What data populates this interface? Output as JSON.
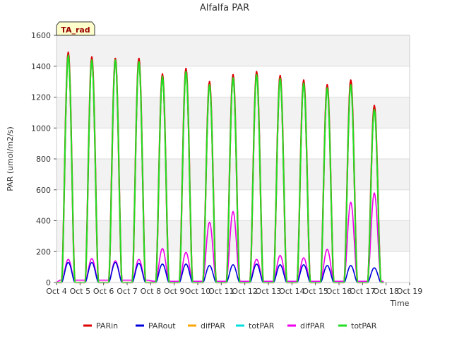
{
  "chart_data": {
    "type": "line",
    "title": "Alfalfa PAR",
    "xlabel": "Time",
    "ylabel": "PAR (umol/m2/s)",
    "xlim": [
      4,
      19
    ],
    "ylim": [
      0,
      1600
    ],
    "x_ticks": [
      {
        "value": 4,
        "label": "Oct 4"
      },
      {
        "value": 5,
        "label": "Oct 5"
      },
      {
        "value": 6,
        "label": "Oct 6"
      },
      {
        "value": 7,
        "label": "Oct 7"
      },
      {
        "value": 8,
        "label": "Oct 8"
      },
      {
        "value": 9,
        "label": "Oct 9"
      },
      {
        "value": 10,
        "label": "Oct 10"
      },
      {
        "value": 11,
        "label": "Oct 11"
      },
      {
        "value": 12,
        "label": "Oct 12"
      },
      {
        "value": 13,
        "label": "Oct 13"
      },
      {
        "value": 14,
        "label": "Oct 14"
      },
      {
        "value": 15,
        "label": "Oct 15"
      },
      {
        "value": 16,
        "label": "Oct 16"
      },
      {
        "value": 17,
        "label": "Oct 17"
      },
      {
        "value": 18,
        "label": "Oct 18"
      },
      {
        "value": 19,
        "label": "Oct 19"
      }
    ],
    "y_ticks": [
      0,
      200,
      400,
      600,
      800,
      1000,
      1200,
      1400,
      1600
    ],
    "grid": true,
    "legend_position": "bottom-center",
    "annotation": "TA_rad",
    "series": [
      {
        "name": "PARin",
        "color": "#dd0000"
      },
      {
        "name": "PARout",
        "color": "#0000dd"
      },
      {
        "name": "difPAR",
        "color": "#ffa500"
      },
      {
        "name": "totPAR",
        "color": "#00dddd"
      },
      {
        "name": "difPAR",
        "color": "#ee00ee"
      },
      {
        "name": "totPAR",
        "color": "#22dd22"
      }
    ],
    "daily_peaks": {
      "days": [
        4.5,
        5.5,
        6.5,
        7.5,
        8.5,
        9.5,
        10.5,
        11.5,
        12.5,
        13.5,
        14.5,
        15.5,
        16.5,
        17.5
      ],
      "PARin": [
        1490,
        1460,
        1450,
        1450,
        1350,
        1385,
        1300,
        1345,
        1365,
        1340,
        1310,
        1280,
        1310,
        1145
      ],
      "PARout": [
        130,
        130,
        130,
        125,
        120,
        120,
        110,
        115,
        120,
        115,
        115,
        110,
        110,
        95
      ],
      "difPAR": [
        150,
        155,
        140,
        150,
        220,
        195,
        390,
        460,
        150,
        175,
        160,
        215,
        520,
        580
      ],
      "totPAR": [
        1470,
        1440,
        1440,
        1430,
        1335,
        1365,
        1280,
        1325,
        1345,
        1320,
        1290,
        1260,
        1280,
        1120
      ]
    }
  }
}
